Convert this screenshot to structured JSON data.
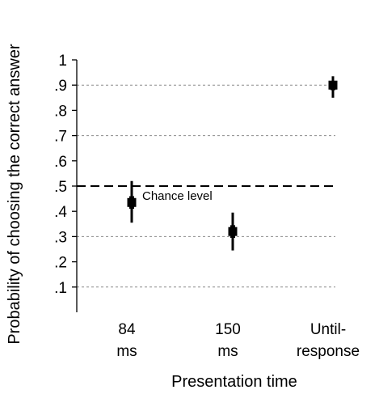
{
  "chart_data": {
    "type": "scatter",
    "xlabel": "Presentation time",
    "ylabel": "Probability of choosing the correct answer",
    "ylim": [
      0,
      1
    ],
    "yticks": [
      "1",
      ".9",
      ".8",
      ".7",
      ".6",
      ".5",
      ".4",
      ".3",
      ".2",
      ".1"
    ],
    "ytick_values": [
      1,
      0.9,
      0.8,
      0.7,
      0.6,
      0.5,
      0.4,
      0.3,
      0.2,
      0.1
    ],
    "dashed_gridlines": [
      0.9,
      0.7,
      0.3,
      0.1
    ],
    "categories": [
      {
        "line1": "84",
        "line2": "ms"
      },
      {
        "line1": "150",
        "line2": "ms"
      },
      {
        "line1": "Until-",
        "line2": "response"
      }
    ],
    "points": [
      {
        "mean": 0.435,
        "ci_low": 0.355,
        "ci_high": 0.52,
        "se_low": 0.41,
        "se_high": 0.46
      },
      {
        "mean": 0.32,
        "ci_low": 0.245,
        "ci_high": 0.395,
        "se_low": 0.295,
        "se_high": 0.345
      },
      {
        "mean": 0.9,
        "ci_low": 0.85,
        "ci_high": 0.935,
        "se_low": 0.88,
        "se_high": 0.915
      }
    ],
    "reference_line": {
      "value": 0.5,
      "label": "Chance level"
    },
    "grid": true,
    "legend": "none"
  }
}
